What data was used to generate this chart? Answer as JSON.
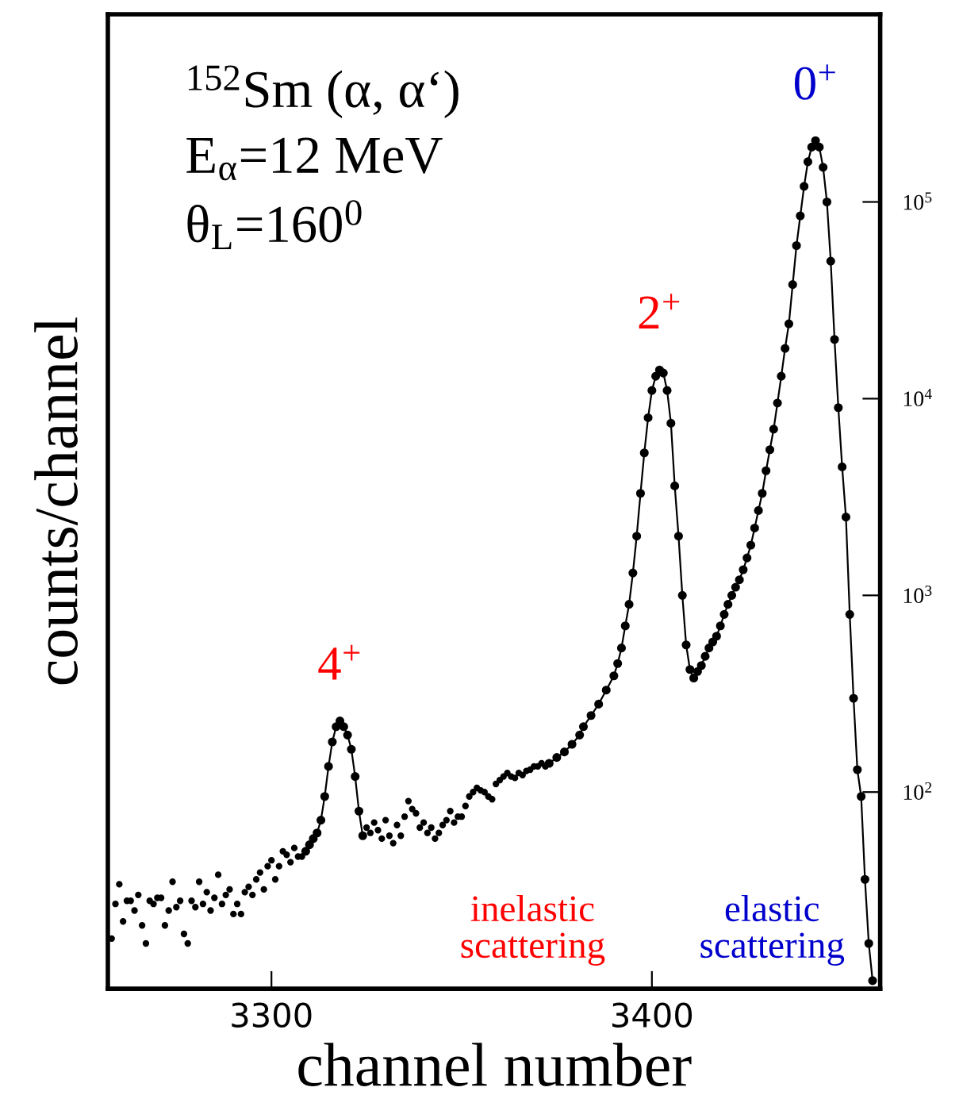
{
  "chart_data": {
    "type": "scatter",
    "xlabel": "channel number",
    "ylabel": "counts/channel",
    "xlim": [
      3257,
      3460
    ],
    "ylim": [
      10,
      900000
    ],
    "log": "y",
    "xticks": [
      3300,
      3400
    ],
    "yticks": [
      {
        "value": 100,
        "label": "10$^{2}$"
      },
      {
        "value": 1000,
        "label": "10$^{3}$"
      },
      {
        "value": 10000,
        "label": "10$^{4}$"
      },
      {
        "value": 100000,
        "label": "10$^{5}$"
      }
    ],
    "grid": false,
    "legend": false,
    "marker": "circle",
    "line_style": "solid",
    "series": [
      {
        "color": "#000000",
        "x": [
          3258,
          3259,
          3260,
          3261,
          3262,
          3263,
          3264,
          3265,
          3266,
          3267,
          3268,
          3269,
          3270,
          3271,
          3272,
          3273,
          3274,
          3275,
          3276,
          3277,
          3278,
          3279,
          3280,
          3281,
          3282,
          3283,
          3284,
          3285,
          3286,
          3287,
          3288,
          3289,
          3290,
          3291,
          3292,
          3293,
          3294,
          3295,
          3296,
          3297,
          3298,
          3299,
          3300,
          3301,
          3302,
          3303,
          3304,
          3305,
          3306,
          3307,
          3308,
          3325,
          3326,
          3327,
          3328,
          3329,
          3330,
          3331,
          3332,
          3333,
          3334,
          3335,
          3336,
          3337,
          3338,
          3339,
          3340,
          3341,
          3342,
          3343,
          3344,
          3345,
          3346,
          3347,
          3348,
          3349,
          3350,
          3351,
          3352,
          3353,
          3354,
          3355,
          3356,
          3357,
          3358,
          3359,
          3360,
          3361,
          3362,
          3363,
          3364,
          3365,
          3366,
          3367,
          3368,
          3369,
          3370,
          3371,
          3372
        ],
        "values": [
          18,
          27,
          34,
          22,
          28,
          28,
          25,
          30,
          21,
          17,
          28,
          27,
          29,
          29,
          21,
          25,
          35,
          26,
          28,
          19,
          17,
          28,
          26,
          35,
          27,
          31,
          25,
          29,
          38,
          27,
          30,
          32,
          24,
          27,
          24,
          31,
          33,
          30,
          36,
          39,
          32,
          42,
          45,
          36,
          42,
          50,
          48,
          44,
          52,
          47,
          47,
          66,
          62,
          70,
          64,
          58,
          72,
          60,
          55,
          68,
          60,
          75,
          90,
          82,
          78,
          66,
          70,
          62,
          66,
          58,
          62,
          68,
          72,
          80,
          70,
          75,
          75,
          85,
          95,
          100,
          105,
          102,
          100,
          95,
          92,
          110,
          115,
          120,
          125,
          120,
          118,
          125,
          122,
          128,
          130,
          135,
          135,
          140,
          135
        ]
      },
      {
        "type": "line",
        "color": "#000000",
        "x": [
          3309,
          3310,
          3311,
          3312,
          3313,
          3314,
          3315,
          3316,
          3317,
          3318,
          3319,
          3320,
          3321,
          3322,
          3323,
          3324
        ],
        "values": [
          50,
          54,
          58,
          62,
          72,
          95,
          135,
          180,
          215,
          230,
          215,
          195,
          165,
          120,
          80,
          60
        ]
      },
      {
        "type": "line",
        "color": "#000000",
        "x": [
          3373,
          3375,
          3377,
          3379,
          3381,
          3382,
          3384,
          3386,
          3388,
          3390,
          3391,
          3392,
          3393,
          3394,
          3395,
          3396,
          3397,
          3398,
          3399,
          3400,
          3401,
          3402,
          3403,
          3404,
          3405,
          3406,
          3407,
          3408,
          3409,
          3410,
          3411,
          3412,
          3413,
          3414,
          3415,
          3416,
          3417,
          3418,
          3419,
          3420,
          3421,
          3422,
          3423,
          3424,
          3425,
          3426,
          3427,
          3428,
          3429,
          3430,
          3431,
          3432,
          3433,
          3434,
          3435,
          3436,
          3437,
          3438,
          3439,
          3440,
          3441,
          3442,
          3443,
          3444,
          3445,
          3446,
          3447,
          3448,
          3449,
          3450,
          3451,
          3452,
          3453,
          3454,
          3455,
          3456,
          3457,
          3458
        ],
        "values": [
          140,
          150,
          160,
          175,
          195,
          215,
          245,
          280,
          330,
          390,
          450,
          540,
          700,
          900,
          1300,
          2000,
          3300,
          5300,
          8000,
          11000,
          13000,
          14000,
          13500,
          11000,
          7500,
          3600,
          2000,
          1000,
          560,
          420,
          380,
          410,
          440,
          490,
          540,
          580,
          620,
          700,
          800,
          900,
          1000,
          1100,
          1200,
          1350,
          1550,
          1800,
          2200,
          2700,
          3300,
          4300,
          5500,
          7000,
          9500,
          13000,
          18000,
          24000,
          38000,
          60000,
          85000,
          120000,
          160000,
          190000,
          205000,
          190000,
          150000,
          100000,
          50000,
          20000,
          9000,
          4500,
          2500,
          800,
          300,
          130,
          95,
          36,
          17,
          11
        ]
      }
    ],
    "annotations": [
      {
        "text": "0$^{+}$",
        "x": 3443,
        "y": 205000
      },
      {
        "text": "2$^{+}$",
        "x": 3402,
        "y": 14000
      },
      {
        "text": "4$^{+}$",
        "x": 3318,
        "y": 230
      },
      "$^{152}$Sm (α, α‘)",
      "E$_{α}$=12 MeV",
      "θ$_{L}$=160$^{0}$",
      "inelastic\nscattering",
      "elastic\nscattering"
    ]
  }
}
